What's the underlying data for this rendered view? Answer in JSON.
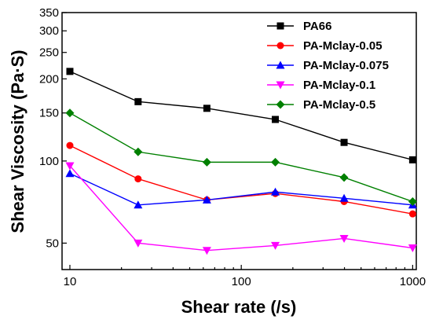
{
  "chart_data": {
    "type": "line",
    "xlabel": "Shear rate (/s)",
    "ylabel": "Shear Viscosity (Pa·S)",
    "x_scale": "log",
    "y_scale": "log",
    "xlim": [
      9,
      1050
    ],
    "ylim": [
      40,
      350
    ],
    "x_ticks": [
      10,
      100,
      1000
    ],
    "x_tick_labels": [
      "10",
      "100",
      "1000"
    ],
    "y_ticks": [
      50,
      100,
      150,
      200,
      250,
      300,
      350
    ],
    "y_tick_labels": [
      "50",
      "100",
      "150",
      "200",
      "250",
      "300",
      "350"
    ],
    "legend_position": "top-right",
    "grid": false,
    "x": [
      10,
      25,
      63,
      158,
      398,
      1000
    ],
    "series": [
      {
        "name": "PA66",
        "color": "#000000",
        "marker": "square",
        "values": [
          213,
          165,
          156,
          142,
          117,
          101
        ]
      },
      {
        "name": "PA-Mclay-0.05",
        "color": "#ff0000",
        "marker": "circle",
        "values": [
          114,
          86,
          72,
          76,
          71,
          64
        ]
      },
      {
        "name": "PA-Mclay-0.075",
        "color": "#0000ff",
        "marker": "triangle-up",
        "values": [
          90,
          69,
          72,
          77,
          73,
          69
        ]
      },
      {
        "name": "PA-Mclay-0.1",
        "color": "#ff00ff",
        "marker": "triangle-down",
        "values": [
          96,
          50,
          47,
          49,
          52,
          48
        ]
      },
      {
        "name": "PA-Mclay-0.5",
        "color": "#008000",
        "marker": "diamond",
        "values": [
          150,
          108,
          99,
          99,
          87,
          71
        ]
      }
    ]
  }
}
